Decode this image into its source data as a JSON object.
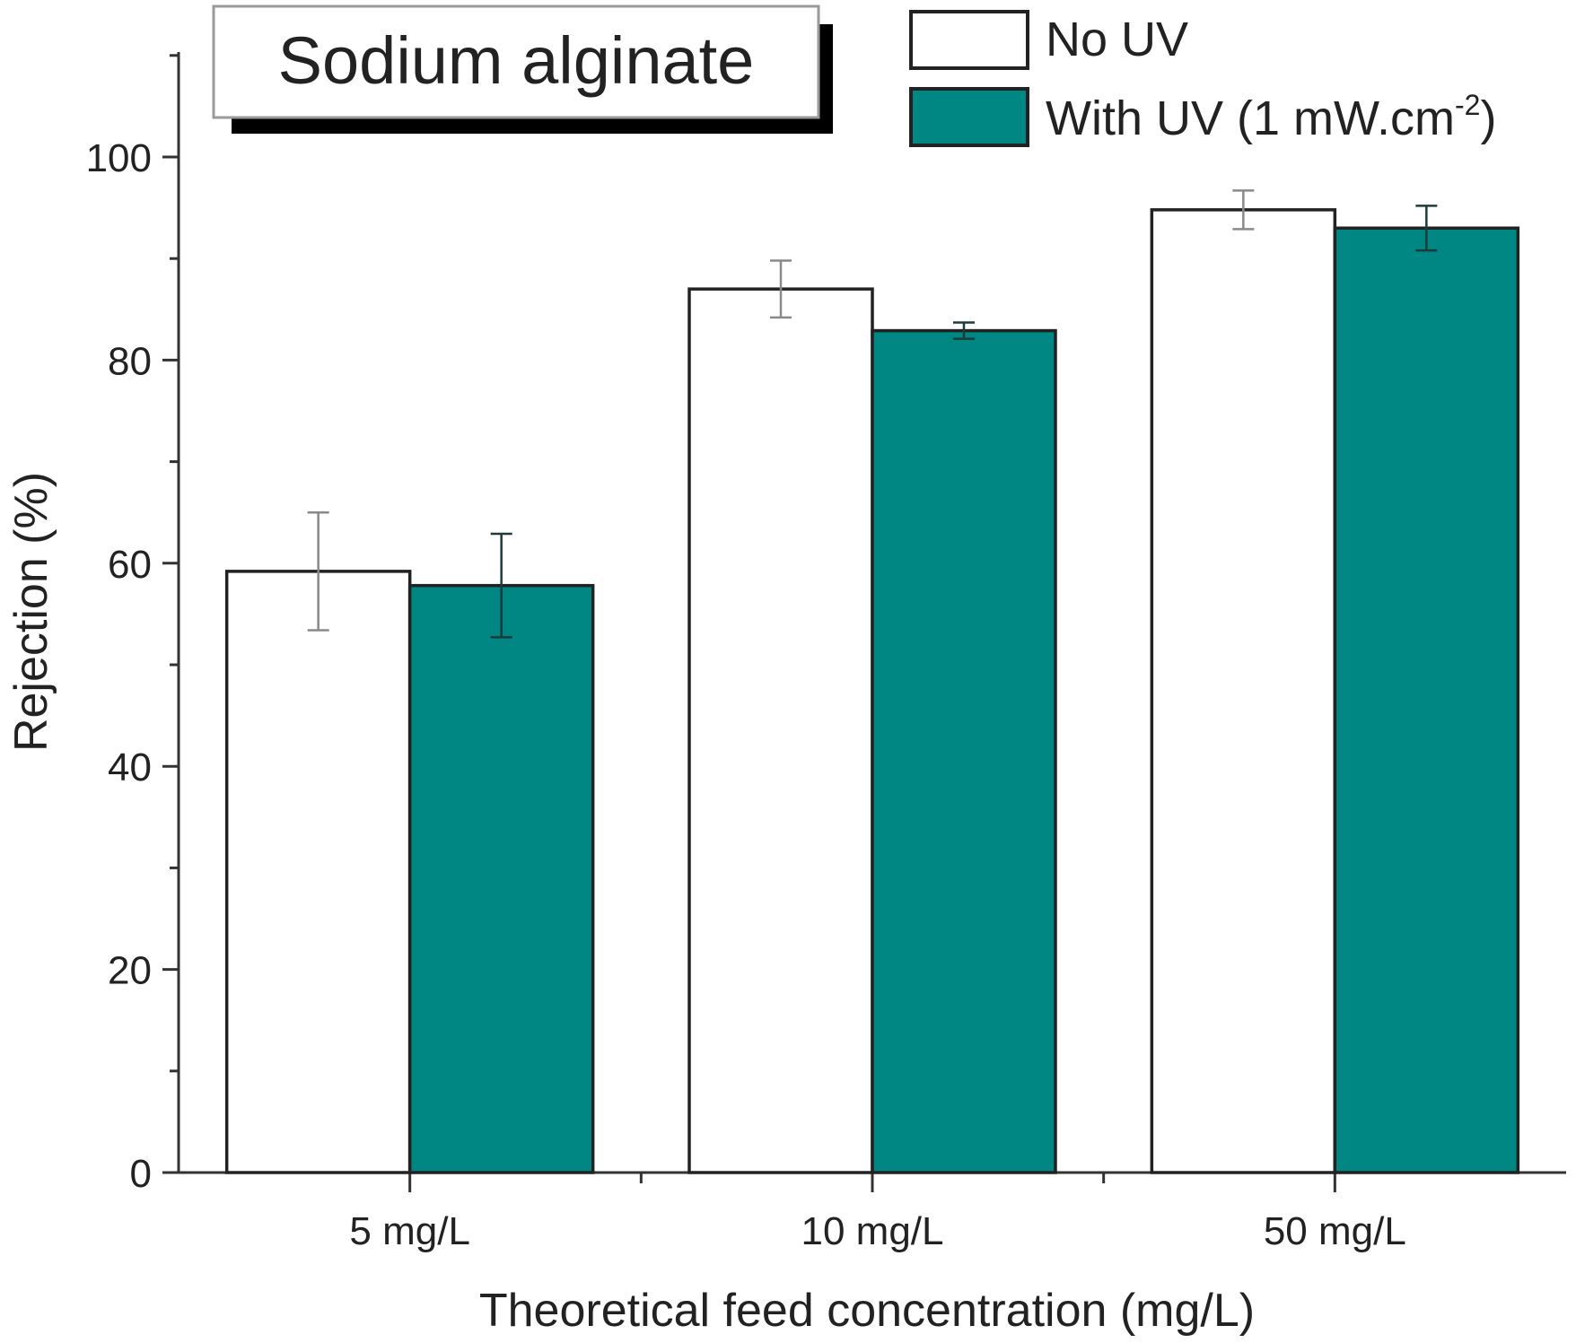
{
  "chart_data": {
    "type": "bar",
    "title": "Sodium alginate",
    "xlabel": "Theoretical feed concentration (mg/L)",
    "ylabel": "Rejection (%)",
    "categories": [
      "5 mg/L",
      "10 mg/L",
      "50 mg/L"
    ],
    "ylim": [
      0,
      110
    ],
    "yticks": [
      0,
      20,
      40,
      60,
      80,
      100
    ],
    "ytick_labels": [
      "0",
      "20",
      "40",
      "60",
      "80",
      "100"
    ],
    "grid": false,
    "legend_position": "top-right",
    "series": [
      {
        "name": "No UV",
        "color": "#ffffff",
        "values": [
          59.2,
          87.0,
          94.8
        ],
        "errors": [
          5.8,
          2.8,
          1.9
        ]
      },
      {
        "name": "With UV (1 mW.cm",
        "name_superscript": "-2",
        "name_suffix": ")",
        "color": "#008784",
        "values": [
          57.8,
          82.9,
          93.0
        ],
        "errors": [
          5.1,
          0.8,
          2.2
        ]
      }
    ]
  }
}
